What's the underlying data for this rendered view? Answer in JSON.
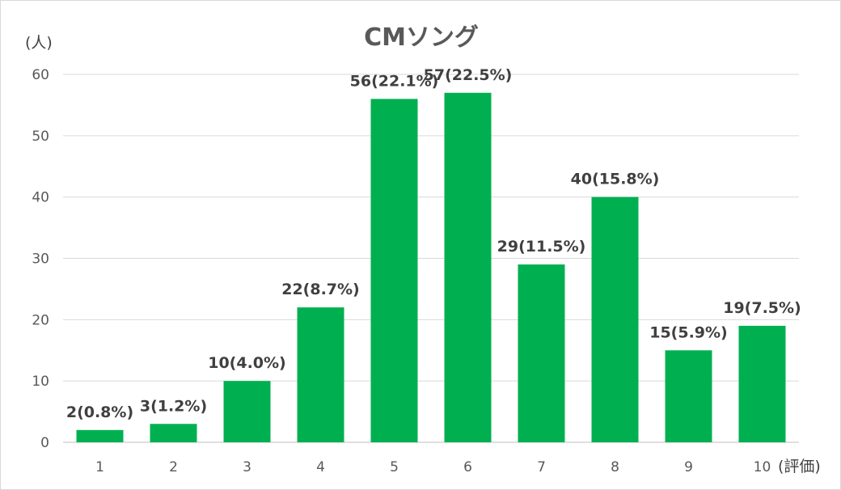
{
  "chart_data": {
    "type": "bar",
    "title": "CMソング",
    "ylabel": "(人)",
    "xlabel": "(評価)",
    "categories": [
      "1",
      "2",
      "3",
      "4",
      "5",
      "6",
      "7",
      "8",
      "9",
      "10"
    ],
    "values": [
      2,
      3,
      10,
      22,
      56,
      57,
      29,
      40,
      15,
      19
    ],
    "data_labels": [
      "2(0.8%)",
      "3(1.2%)",
      "10(4.0%)",
      "22(8.7%)",
      "56(22.1%)",
      "57(22.5%)",
      "29(11.5%)",
      "40(15.8%)",
      "15(5.9%)",
      "19(7.5%)"
    ],
    "ylim": [
      0,
      60
    ],
    "yticks": [
      0,
      10,
      20,
      30,
      40,
      50,
      60
    ],
    "grid": true,
    "legend": "none",
    "colors": {
      "bar": "#00b050",
      "grid": "#d9d9d9",
      "text": "#595959"
    }
  }
}
